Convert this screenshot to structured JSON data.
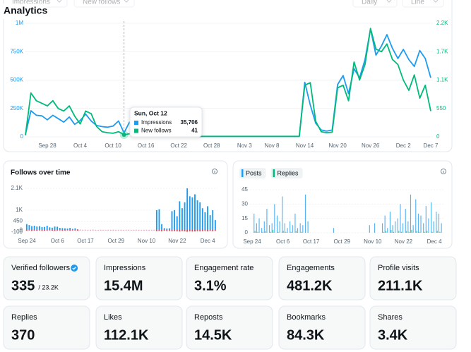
{
  "header": {
    "title": "Analytics",
    "controls": [
      "Impressions",
      "New follows",
      "Daily",
      "Line"
    ]
  },
  "chart_data": [
    {
      "type": "line",
      "categories": [
        null,
        null,
        null,
        null,
        "Sep 28",
        null,
        null,
        null,
        null,
        null,
        "Oct 4",
        null,
        null,
        null,
        null,
        null,
        "Oct 10",
        null,
        null,
        null,
        null,
        null,
        "Oct 16",
        null,
        null,
        null,
        null,
        null,
        "Oct 22",
        null,
        null,
        null,
        null,
        null,
        "Oct 28",
        null,
        null,
        null,
        null,
        null,
        "Nov 3",
        null,
        null,
        null,
        null,
        "Nov 8",
        null,
        null,
        null,
        null,
        null,
        "Nov 14",
        null,
        null,
        null,
        null,
        null,
        "Nov 20",
        null,
        null,
        null,
        null,
        null,
        "Nov 26",
        null,
        null,
        null,
        null,
        null,
        "Dec 2",
        null,
        null,
        null,
        null,
        "Dec 7"
      ],
      "series": [
        {
          "name": "Impressions",
          "color": "#1d9bf0",
          "values": [
            20000,
            230000,
            190000,
            185000,
            150000,
            190000,
            160000,
            130000,
            175000,
            110000,
            145000,
            200000,
            140000,
            100000,
            90000,
            85000,
            95000,
            140000,
            35706,
            130000,
            10000,
            4000,
            4000,
            4000,
            4000,
            4000,
            4000,
            4000,
            4000,
            4000,
            4000,
            4000,
            4000,
            4000,
            4000,
            4000,
            4000,
            4000,
            4000,
            4000,
            4000,
            4000,
            4000,
            4000,
            4000,
            4000,
            4000,
            4000,
            4000,
            4000,
            4000,
            480000,
            280000,
            120000,
            60000,
            50000,
            60000,
            460000,
            540000,
            380000,
            600000,
            520000,
            680000,
            950000,
            720000,
            800000,
            900000,
            780000,
            690000,
            770000,
            680000,
            620000,
            760000,
            690000,
            520000
          ]
        },
        {
          "name": "New follows",
          "color": "#00ba7c",
          "axis": "y2",
          "values": [
            30,
            850,
            700,
            650,
            600,
            700,
            550,
            500,
            600,
            400,
            250,
            500,
            450,
            200,
            100,
            80,
            70,
            100,
            41,
            60,
            20,
            10,
            10,
            10,
            10,
            10,
            10,
            10,
            10,
            10,
            10,
            10,
            10,
            10,
            10,
            10,
            10,
            10,
            10,
            10,
            10,
            10,
            10,
            10,
            10,
            10,
            10,
            10,
            10,
            10,
            10,
            1000,
            1050,
            300,
            100,
            80,
            90,
            950,
            1000,
            700,
            1450,
            1100,
            1400,
            2100,
            1700,
            1650,
            1800,
            1500,
            1400,
            1100,
            900,
            1200,
            750,
            1000,
            500
          ]
        }
      ],
      "ylim": [
        0,
        1000000
      ],
      "yticks": [
        0,
        {
          "value": 250000,
          "label": "250K"
        },
        {
          "value": 500000,
          "label": "500K"
        },
        {
          "value": 750000,
          "label": "750K"
        },
        {
          "value": 1000000,
          "label": "1M"
        }
      ],
      "y2lim": [
        0,
        2200
      ],
      "y2ticks": [
        0,
        550,
        {
          "value": 1100,
          "label": "1.1K"
        },
        {
          "value": 1650,
          "label": "1.7K"
        },
        {
          "value": 2200,
          "label": "2.2K"
        }
      ],
      "grid": true
    },
    {
      "type": "bar",
      "title": "Follows over time",
      "categories": [
        "Sep 24",
        null,
        null,
        null,
        null,
        null,
        null,
        null,
        null,
        null,
        null,
        null,
        "Oct 6",
        null,
        null,
        null,
        null,
        null,
        null,
        null,
        null,
        null,
        null,
        "Oct 17",
        null,
        null,
        null,
        null,
        null,
        null,
        null,
        null,
        null,
        null,
        null,
        "Oct 29",
        null,
        null,
        null,
        null,
        null,
        null,
        null,
        null,
        null,
        null,
        null,
        "Nov 10",
        null,
        null,
        null,
        null,
        null,
        null,
        null,
        null,
        null,
        null,
        null,
        "Nov 22",
        null,
        null,
        null,
        null,
        null,
        null,
        null,
        null,
        null,
        null,
        null,
        "Dec 4",
        null,
        null,
        null
      ],
      "series": [
        {
          "color": "#1d9bf0",
          "values": [
            300,
            250,
            200,
            220,
            180,
            200,
            150,
            160,
            220,
            140,
            120,
            180,
            170,
            110,
            100,
            90,
            80,
            110,
            60,
            90,
            40,
            15,
            10,
            12,
            8,
            10,
            15,
            10,
            8,
            12,
            10,
            9,
            11,
            10,
            14,
            9,
            10,
            12,
            8,
            10,
            11,
            9,
            10,
            12,
            10,
            8,
            10,
            11,
            9,
            10,
            12,
            1000,
            1050,
            300,
            100,
            80,
            90,
            950,
            1000,
            700,
            1450,
            1100,
            1400,
            2100,
            1700,
            1650,
            1800,
            1500,
            1400,
            1100,
            900,
            1200,
            750,
            1000,
            500
          ]
        },
        {
          "color": "#f4212e",
          "values": [
            -30,
            -20,
            -40,
            -25,
            -30,
            -20,
            -35,
            -30,
            -25,
            -20,
            -30,
            -40,
            -25,
            -20,
            -30,
            -25,
            -20,
            -30,
            -20,
            -25,
            -30,
            -10,
            -10,
            -10,
            -10,
            -10,
            -10,
            -10,
            -10,
            -10,
            -10,
            -10,
            -10,
            -10,
            -10,
            -10,
            -10,
            -10,
            -10,
            -10,
            -10,
            -10,
            -10,
            -10,
            -10,
            -10,
            -10,
            -10,
            -10,
            -10,
            -10,
            -50,
            -40,
            -60,
            -30,
            -45,
            -40,
            -55,
            -50,
            -60,
            -70,
            -50,
            -60,
            -80,
            -60,
            -70,
            -65,
            -55,
            -60,
            -50,
            -45,
            -60,
            -40,
            -55,
            -35
          ]
        }
      ],
      "ylim": [
        -100,
        2100
      ],
      "yticks": [
        -100,
        0,
        450,
        {
          "value": 1000,
          "label": "1K"
        },
        {
          "value": 2100,
          "label": "2.1K"
        }
      ],
      "grid": true
    },
    {
      "type": "bar",
      "categories": [
        "Sep 24",
        null,
        null,
        null,
        null,
        null,
        null,
        null,
        null,
        null,
        null,
        null,
        "Oct 6",
        null,
        null,
        null,
        null,
        null,
        null,
        null,
        null,
        null,
        null,
        "Oct 17",
        null,
        null,
        null,
        null,
        null,
        null,
        null,
        null,
        null,
        null,
        null,
        "Oct 29",
        null,
        null,
        null,
        null,
        null,
        null,
        null,
        null,
        null,
        null,
        null,
        "Nov 10",
        null,
        null,
        null,
        null,
        null,
        null,
        null,
        null,
        null,
        null,
        null,
        "Nov 22",
        null,
        null,
        null,
        null,
        null,
        null,
        null,
        null,
        null,
        null,
        null,
        "Dec 4",
        null,
        null,
        null
      ],
      "series": [
        {
          "name": "Posts",
          "color": "#1d9bf0",
          "values": [
            0,
            20,
            10,
            15,
            5,
            12,
            25,
            8,
            10,
            30,
            18,
            12,
            38,
            10,
            5,
            12,
            8,
            20,
            5,
            10,
            8,
            40,
            12,
            0,
            0,
            0,
            0,
            0,
            0,
            0,
            0,
            0,
            5,
            0,
            0,
            0,
            0,
            0,
            0,
            0,
            0,
            0,
            0,
            0,
            0,
            0,
            8,
            0,
            10,
            0,
            0,
            10,
            18,
            5,
            22,
            8,
            12,
            15,
            30,
            10,
            25,
            12,
            40,
            8,
            35,
            20,
            18,
            10,
            28,
            15,
            32,
            12,
            22,
            20,
            10
          ]
        },
        {
          "name": "Replies",
          "color": "#00ba7c",
          "values": [
            0,
            2,
            1,
            0,
            1,
            2,
            0,
            1,
            3,
            0,
            1,
            0,
            2,
            1,
            0,
            1,
            0,
            2,
            0,
            1,
            0,
            0,
            0,
            0,
            0,
            0,
            0,
            0,
            0,
            0,
            0,
            0,
            0,
            0,
            0,
            0,
            0,
            0,
            0,
            0,
            0,
            0,
            0,
            0,
            0,
            0,
            0,
            0,
            0,
            0,
            0,
            1,
            2,
            0,
            3,
            1,
            0,
            2,
            1,
            0,
            2,
            1,
            3,
            0,
            2,
            1,
            0,
            1,
            2,
            0,
            1,
            0,
            2,
            1,
            0
          ]
        }
      ],
      "ylim": [
        0,
        45
      ],
      "yticks": [
        0,
        15,
        30,
        45
      ],
      "grid": true
    }
  ],
  "tooltip": {
    "date": "Sun, Oct 12",
    "values": [
      "35,706",
      "41"
    ]
  },
  "stats": [
    {
      "label": "Verified followers",
      "value": "335",
      "extra": "/ 23.2K"
    },
    {
      "label": "Impressions",
      "value": "15.4M"
    },
    {
      "label": "Engagement rate",
      "value": "3.1%"
    },
    {
      "label": "Engagements",
      "value": "481.2K"
    },
    {
      "label": "Profile visits",
      "value": "211.1K"
    },
    {
      "label": "Replies",
      "value": "370"
    },
    {
      "label": "Likes",
      "value": "112.1K"
    },
    {
      "label": "Reposts",
      "value": "14.5K"
    },
    {
      "label": "Bookmarks",
      "value": "84.3K"
    },
    {
      "label": "Shares",
      "value": "3.4K"
    }
  ]
}
